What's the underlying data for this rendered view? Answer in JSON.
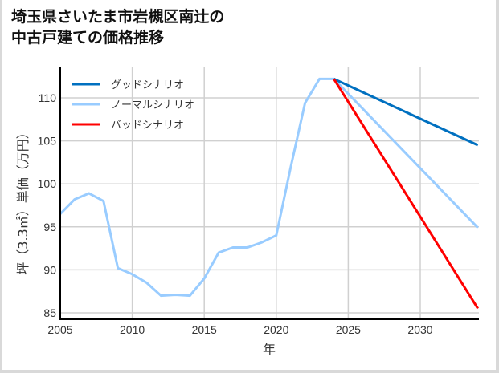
{
  "title_lines": [
    "埼玉県さいたま市岩槻区南辻の",
    "中古戸建ての価格推移"
  ],
  "chart_data": {
    "type": "line",
    "title": "埼玉県さいたま市岩槻区南辻の中古戸建ての価格推移",
    "xlabel": "年",
    "ylabel": "坪（3.3㎡）単価（万円）",
    "xlim": [
      2005,
      2034
    ],
    "ylim": [
      84.3,
      113.6
    ],
    "xticks": [
      2005,
      2010,
      2015,
      2020,
      2025,
      2030
    ],
    "yticks": [
      85,
      90,
      95,
      100,
      105,
      110
    ],
    "grid": true,
    "legend_position": "upper left",
    "series": [
      {
        "name": "グッドシナリオ",
        "color": "#0070c0",
        "x": [
          2024,
          2034
        ],
        "values": [
          112.2,
          104.5
        ]
      },
      {
        "name": "ノーマルシナリオ",
        "color": "#99ccff",
        "x": [
          2005,
          2006,
          2007,
          2008,
          2009,
          2010,
          2011,
          2012,
          2013,
          2014,
          2015,
          2016,
          2017,
          2018,
          2019,
          2020,
          2021,
          2022,
          2023,
          2024,
          2034
        ],
        "values": [
          96.5,
          98.2,
          98.9,
          98.0,
          90.2,
          89.5,
          88.5,
          87.0,
          87.1,
          87.0,
          89.0,
          92.0,
          92.6,
          92.6,
          93.2,
          94.0,
          101.9,
          109.4,
          112.2,
          112.2,
          94.9
        ]
      },
      {
        "name": "バッドシナリオ",
        "color": "#ff0000",
        "x": [
          2024,
          2034
        ],
        "values": [
          112.2,
          85.5
        ]
      }
    ]
  }
}
